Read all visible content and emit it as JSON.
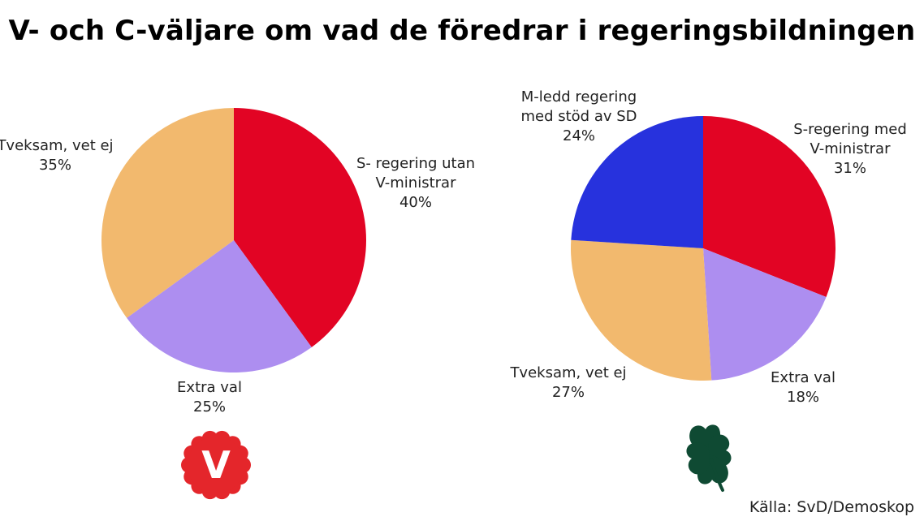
{
  "title": "V- och C-väljare om vad de föredrar i regeringsbildningen",
  "source": "Källa: SvD/Demoskop",
  "logos": {
    "left": {
      "icon": "v-party-flower-logo",
      "letter": "V",
      "color": "#e4262b"
    },
    "right": {
      "icon": "four-leaf-clover-logo",
      "color": "#0f4a33"
    }
  },
  "chart_data": [
    {
      "type": "pie",
      "categories": [
        "S- regering utan V-ministrar",
        "Extra val",
        "Tveksam, vet ej"
      ],
      "values": [
        40,
        25,
        35
      ],
      "colors": [
        "#e20424",
        "#ad8ef0",
        "#f2b96e"
      ],
      "labels": [
        {
          "lines": [
            "S- regering utan",
            "V-ministrar"
          ],
          "pct": "40%"
        },
        {
          "lines": [
            "Extra val"
          ],
          "pct": "25%"
        },
        {
          "lines": [
            "Tveksam, vet ej"
          ],
          "pct": "35%"
        }
      ]
    },
    {
      "type": "pie",
      "categories": [
        "S-regering med V-ministrar",
        "Extra val",
        "Tveksam, vet ej",
        "M-ledd regering med stöd av SD"
      ],
      "values": [
        31,
        18,
        27,
        24
      ],
      "colors": [
        "#e20424",
        "#ad8ef0",
        "#f2b96e",
        "#2732dd"
      ],
      "labels": [
        {
          "lines": [
            "S-regering med",
            "V-ministrar"
          ],
          "pct": "31%"
        },
        {
          "lines": [
            "Extra val"
          ],
          "pct": "18%"
        },
        {
          "lines": [
            "Tveksam, vet ej"
          ],
          "pct": "27%"
        },
        {
          "lines": [
            "M-ledd regering",
            "med stöd av SD"
          ],
          "pct": "24%"
        }
      ]
    }
  ]
}
